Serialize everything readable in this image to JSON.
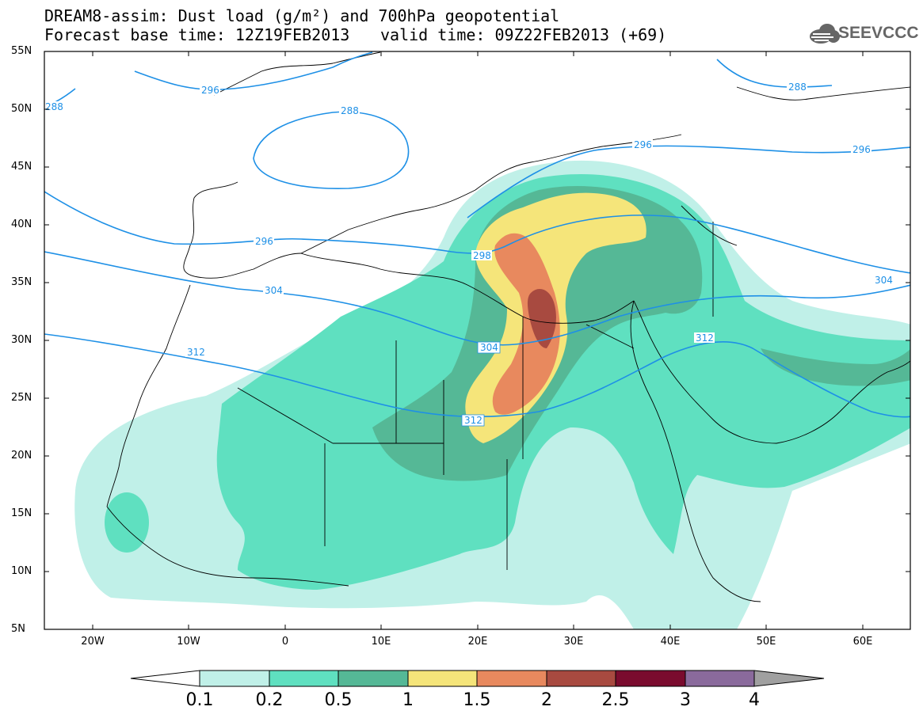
{
  "title": {
    "line1": "DREAM8-assim: Dust load (g/m²) and 700hPa geopotential",
    "line2": "Forecast base time: 12Z19FEB2013",
    "valid": "valid time: 09Z22FEB2013 (+69)"
  },
  "logo": {
    "text": "SEEVCCC",
    "icon": "cloud-icon"
  },
  "map": {
    "lon_range": [
      -25,
      65
    ],
    "lat_range": [
      5,
      55
    ],
    "lat_ticks": [
      "55N",
      "50N",
      "45N",
      "40N",
      "35N",
      "30N",
      "25N",
      "20N",
      "15N",
      "10N",
      "5N"
    ],
    "lon_ticks": [
      "20W",
      "10W",
      "0",
      "10E",
      "20E",
      "30E",
      "40E",
      "50E",
      "60E"
    ],
    "contour_labels": [
      "288",
      "296",
      "288",
      "296",
      "298",
      "296",
      "304",
      "304",
      "304",
      "312",
      "312",
      "312",
      "288",
      "296"
    ]
  },
  "colorbar": {
    "labels": [
      "0.1",
      "0.2",
      "0.5",
      "1",
      "1.5",
      "2",
      "2.5",
      "3",
      "4"
    ],
    "colors": [
      "#c0f0e8",
      "#5fe0c0",
      "#55b896",
      "#f5e57a",
      "#e8895e",
      "#a84a40",
      "#7a0b2e",
      "#8a6a9c"
    ],
    "under_color": "#ffffff",
    "over_color": "#a0a0a0"
  },
  "colors": {
    "contour": "#1e90e6",
    "border": "#000000"
  }
}
